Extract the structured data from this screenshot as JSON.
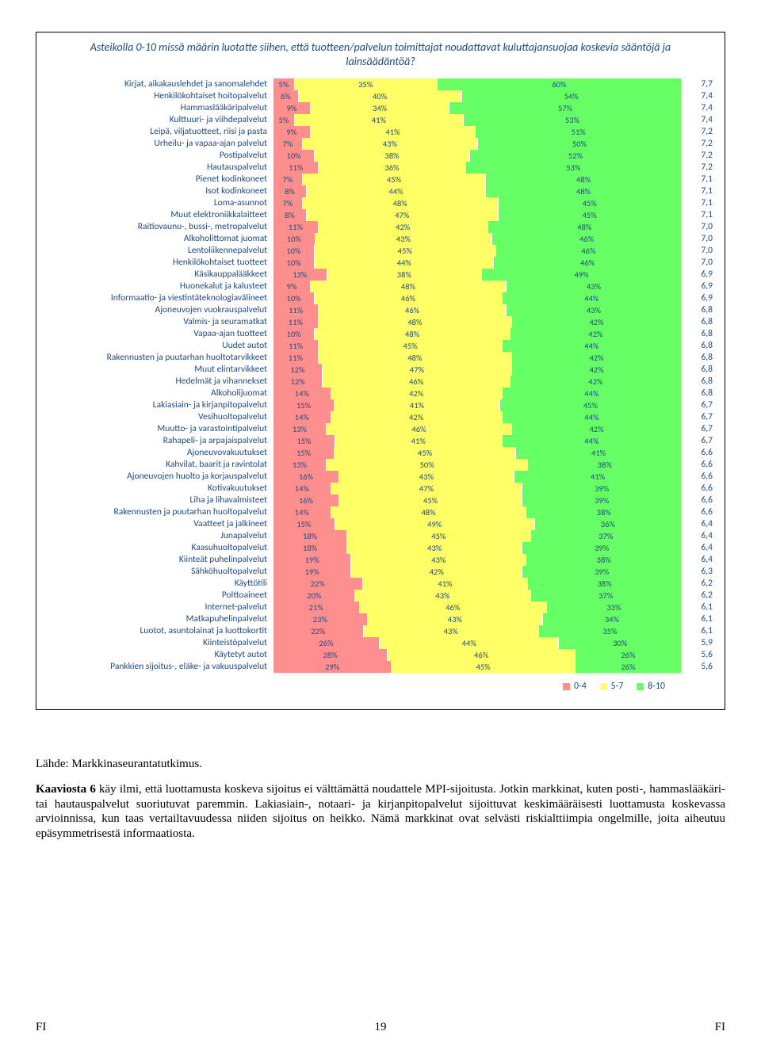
{
  "colors": {
    "low": "#ff8f8f",
    "mid": "#ffff66",
    "high": "#66ff66",
    "text": "#1f497d"
  },
  "chart": {
    "title": "Asteikolla 0-10 missä määrin luotatte siihen, että tuotteen/palvelun toimittajat noudattavat kuluttajansuojaa koskevia sääntöjä ja lainsäädäntöä?",
    "legend": {
      "low": "0-4",
      "mid": "5-7",
      "high": "8-10"
    },
    "rows": [
      {
        "label": "Kirjat, aikakauslehdet ja sanomalehdet",
        "low": 5,
        "mid": 35,
        "high": 60,
        "score": "7,7"
      },
      {
        "label": "Henkilökohtaiset hoitopalvelut",
        "low": 6,
        "mid": 40,
        "high": 54,
        "score": "7,4"
      },
      {
        "label": "Hammaslääkäripalvelut",
        "low": 9,
        "mid": 34,
        "high": 57,
        "score": "7,4"
      },
      {
        "label": "Kulttuuri- ja viihdepalvelut",
        "low": 5,
        "mid": 41,
        "high": 53,
        "score": "7,4"
      },
      {
        "label": "Leipä, viljatuotteet, riisi ja pasta",
        "low": 9,
        "mid": 41,
        "high": 51,
        "score": "7,2"
      },
      {
        "label": "Urheilu- ja vapaa-ajan palvelut",
        "low": 7,
        "mid": 43,
        "high": 50,
        "score": "7,2"
      },
      {
        "label": "Postipalvelut",
        "low": 10,
        "mid": 38,
        "high": 52,
        "score": "7,2"
      },
      {
        "label": "Hautauspalvelut",
        "low": 11,
        "mid": 36,
        "high": 53,
        "score": "7,2"
      },
      {
        "label": "Pienet kodinkoneet",
        "low": 7,
        "mid": 45,
        "high": 48,
        "score": "7,1"
      },
      {
        "label": "Isot kodinkoneet",
        "low": 8,
        "mid": 44,
        "high": 48,
        "score": "7,1"
      },
      {
        "label": "Loma-asunnot",
        "low": 7,
        "mid": 48,
        "high": 45,
        "score": "7,1"
      },
      {
        "label": "Muut elektroniikkalaitteet",
        "low": 8,
        "mid": 47,
        "high": 45,
        "score": "7,1"
      },
      {
        "label": "Raitiovaunu-, bussi-, metropalvelut",
        "low": 11,
        "mid": 42,
        "high": 48,
        "score": "7,0"
      },
      {
        "label": "Alkoholittomat juomat",
        "low": 10,
        "mid": 43,
        "high": 46,
        "score": "7,0"
      },
      {
        "label": "Lentoliikennepalvelut",
        "low": 10,
        "mid": 45,
        "high": 46,
        "score": "7,0"
      },
      {
        "label": "Henkilökohtaiset tuotteet",
        "low": 10,
        "mid": 44,
        "high": 46,
        "score": "7,0"
      },
      {
        "label": "Käsikauppalääkkeet",
        "low": 13,
        "mid": 38,
        "high": 49,
        "score": "6,9"
      },
      {
        "label": "Huonekalut ja kalusteet",
        "low": 9,
        "mid": 48,
        "high": 43,
        "score": "6,9"
      },
      {
        "label": "Informaatio- ja viestintäteknologiavälineet",
        "low": 10,
        "mid": 46,
        "high": 44,
        "score": "6,9"
      },
      {
        "label": "Ajoneuvojen vuokrauspalvelut",
        "low": 11,
        "mid": 46,
        "high": 43,
        "score": "6,8"
      },
      {
        "label": "Valmis- ja seuramatkat",
        "low": 11,
        "mid": 48,
        "high": 42,
        "score": "6,8"
      },
      {
        "label": "Vapaa-ajan tuotteet",
        "low": 10,
        "mid": 48,
        "high": 42,
        "score": "6,8"
      },
      {
        "label": "Uudet autot",
        "low": 11,
        "mid": 45,
        "high": 44,
        "score": "6,8"
      },
      {
        "label": "Rakennusten ja puutarhan huoltotarvikkeet",
        "low": 11,
        "mid": 48,
        "high": 42,
        "score": "6,8"
      },
      {
        "label": "Muut elintarvikkeet",
        "low": 12,
        "mid": 47,
        "high": 42,
        "score": "6,8"
      },
      {
        "label": "Hedelmät ja vihannekset",
        "low": 12,
        "mid": 46,
        "high": 42,
        "score": "6,8"
      },
      {
        "label": "Alkoholijuomat",
        "low": 14,
        "mid": 42,
        "high": 44,
        "score": "6,8"
      },
      {
        "label": "Lakiasiain- ja kirjanpitopalvelut",
        "low": 15,
        "mid": 41,
        "high": 45,
        "score": "6,7"
      },
      {
        "label": "Vesihuoltopalvelut",
        "low": 14,
        "mid": 42,
        "high": 44,
        "score": "6,7"
      },
      {
        "label": "Muutto- ja varastointipalvelut",
        "low": 13,
        "mid": 46,
        "high": 42,
        "score": "6,7"
      },
      {
        "label": "Rahapeli- ja arpajaispalvelut",
        "low": 15,
        "mid": 41,
        "high": 44,
        "score": "6,7"
      },
      {
        "label": "Ajoneuvovakuutukset",
        "low": 15,
        "mid": 45,
        "high": 41,
        "score": "6,6"
      },
      {
        "label": "Kahvilat, baarit ja ravintolat",
        "low": 13,
        "mid": 50,
        "high": 38,
        "score": "6,6"
      },
      {
        "label": "Ajoneuvojen huolto ja korjauspalvelut",
        "low": 16,
        "mid": 43,
        "high": 41,
        "score": "6,6"
      },
      {
        "label": "Kotivakuutukset",
        "low": 14,
        "mid": 47,
        "high": 39,
        "score": "6,6"
      },
      {
        "label": "Liha ja lihavalmisteet",
        "low": 16,
        "mid": 45,
        "high": 39,
        "score": "6,6"
      },
      {
        "label": "Rakennusten ja puutarhan huoltopalvelut",
        "low": 14,
        "mid": 48,
        "high": 38,
        "score": "6,6"
      },
      {
        "label": "Vaatteet ja jalkineet",
        "low": 15,
        "mid": 49,
        "high": 36,
        "score": "6,4"
      },
      {
        "label": "Junapalvelut",
        "low": 18,
        "mid": 45,
        "high": 37,
        "score": "6,4"
      },
      {
        "label": "Kaasuhuoltopalvelut",
        "low": 18,
        "mid": 43,
        "high": 39,
        "score": "6,4"
      },
      {
        "label": "Kiinteät puhelinpalvelut",
        "low": 19,
        "mid": 43,
        "high": 38,
        "score": "6,4"
      },
      {
        "label": "Sähköhuoltopalvelut",
        "low": 19,
        "mid": 42,
        "high": 39,
        "score": "6,3"
      },
      {
        "label": "Käyttötili",
        "low": 22,
        "mid": 41,
        "high": 38,
        "score": "6,2"
      },
      {
        "label": "Polttoaineet",
        "low": 20,
        "mid": 43,
        "high": 37,
        "score": "6,2"
      },
      {
        "label": "Internet-palvelut",
        "low": 21,
        "mid": 46,
        "high": 33,
        "score": "6,1"
      },
      {
        "label": "Matkapuhelinpalvelut",
        "low": 23,
        "mid": 43,
        "high": 34,
        "score": "6,1"
      },
      {
        "label": "Luotot, asuntolainat ja luottokortit",
        "low": 22,
        "mid": 43,
        "high": 35,
        "score": "6,1"
      },
      {
        "label": "Kiinteistöpalvelut",
        "low": 26,
        "mid": 44,
        "high": 30,
        "score": "5,9"
      },
      {
        "label": "Käytetyt autot",
        "low": 28,
        "mid": 46,
        "high": 26,
        "score": "5,6"
      },
      {
        "label": "Pankkien sijoitus-, eläke- ja vakuuspalvelut",
        "low": 29,
        "mid": 45,
        "high": 26,
        "score": "5,6"
      }
    ]
  },
  "source": "Lähde: Markkinaseurantatutkimus.",
  "body_lead": "Kaaviosta 6",
  "body": " käy ilmi, että luottamusta koskeva sijoitus ei välttämättä noudattele MPI-sijoitusta. Jotkin markkinat, kuten posti-, hammaslääkäri- tai hautauspalvelut suoriutuvat paremmin. Lakiasiain-, notaari- ja kirjanpitopalvelut sijoittuvat keskimääräisesti luottamusta koskevassa arvioinnissa, kun taas vertailtavuudessa niiden sijoitus on heikko. Nämä markkinat ovat selvästi riskialttiimpia ongelmille, joita aiheutuu epäsymmetrisestä informaatiosta.",
  "footer": {
    "left": "FI",
    "page": "19",
    "right": "FI"
  }
}
